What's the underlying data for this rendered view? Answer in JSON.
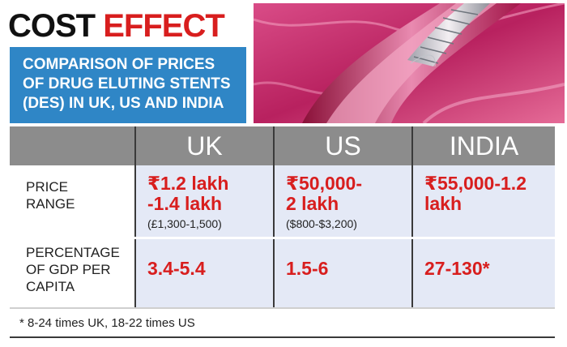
{
  "title": {
    "word1": "COST",
    "word2": "EFFECT"
  },
  "subtitle": {
    "lines": [
      "COMPARISON OF PRICES",
      "OF DRUG ELUTING STENTS",
      "(DES) IN UK, US AND INDIA"
    ]
  },
  "colors": {
    "title_black": "#111111",
    "accent_red": "#d81e1e",
    "subtitle_blue": "#2f86c6",
    "header_gray": "#8c8c8c",
    "cell_tint": "#e4e9f6"
  },
  "table": {
    "columns": [
      "UK",
      "US",
      "INDIA"
    ],
    "rows": [
      {
        "label_lines": [
          "PRICE",
          "RANGE"
        ],
        "cells": [
          {
            "value_lines": [
              "₹1.2 lakh",
              "-1.4 lakh"
            ],
            "note": "(£1,300-1,500)"
          },
          {
            "value_lines": [
              "₹50,000-",
              "2 lakh"
            ],
            "note": "($800-$3,200)"
          },
          {
            "value_lines": [
              "₹55,000-1.2",
              "lakh"
            ],
            "note": ""
          }
        ]
      },
      {
        "label_lines": [
          "PERCENTAGE",
          "OF GDP PER",
          "CAPITA"
        ],
        "cells": [
          {
            "value_lines": [
              "3.4-5.4"
            ]
          },
          {
            "value_lines": [
              "1.5-6"
            ]
          },
          {
            "value_lines": [
              "27-130*"
            ]
          }
        ]
      }
    ]
  },
  "footnote": "* 8-24 times UK, 18-22 times US"
}
